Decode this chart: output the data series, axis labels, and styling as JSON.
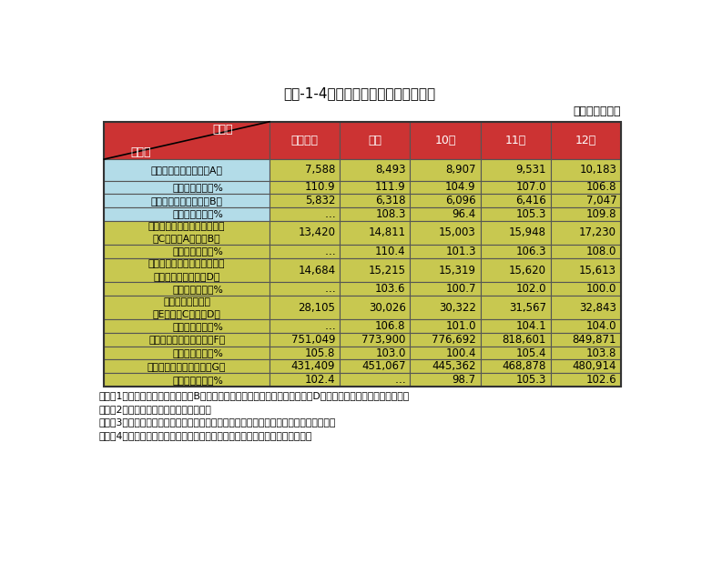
{
  "title": "第３-1-4表　科学技術関係経費の推移",
  "unit_label": "（単位：億円）",
  "col_headers": [
    "平成８年",
    "９年",
    "10年",
    "11年",
    "12年"
  ],
  "rows": [
    {
      "label": "科学技術振興費　　（A）",
      "values": [
        "7,588",
        "8,493",
        "8,907",
        "9,531",
        "10,183"
      ],
      "label_bg": "#b3dce8",
      "value_bg": "#c8c850"
    },
    {
      "label": "対前年度比　　%",
      "values": [
        "110.9",
        "111.9",
        "104.9",
        "107.0",
        "106.8"
      ],
      "label_bg": "#b3dce8",
      "value_bg": "#c8c850"
    },
    {
      "label": "その他の研究関係費（B）",
      "values": [
        "5,832",
        "6,318",
        "6,096",
        "6,416",
        "7,047"
      ],
      "label_bg": "#b3dce8",
      "value_bg": "#c8c850"
    },
    {
      "label": "対前年度比　　%",
      "values": [
        "…",
        "108.3",
        "96.4",
        "105.3",
        "109.8"
      ],
      "label_bg": "#b3dce8",
      "value_bg": "#c8c850"
    },
    {
      "label": "一般会計中の科学技術関係費\n（C）＝（A）＋（B）",
      "values": [
        "13,420",
        "14,811",
        "15,003",
        "15,948",
        "17,230"
      ],
      "label_bg": "#c8c850",
      "value_bg": "#c8c850"
    },
    {
      "label": "対前年度比　　%",
      "values": [
        "…",
        "110.4",
        "101.3",
        "106.3",
        "108.0"
      ],
      "label_bg": "#c8c850",
      "value_bg": "#c8c850"
    },
    {
      "label": "特別会計中の科学技術関係費\n　　　　　　　　（D）",
      "values": [
        "14,684",
        "15,215",
        "15,319",
        "15,620",
        "15,613"
      ],
      "label_bg": "#c8c850",
      "value_bg": "#c8c850"
    },
    {
      "label": "対前年度比　　%",
      "values": [
        "…",
        "103.6",
        "100.7",
        "102.0",
        "100.0"
      ],
      "label_bg": "#c8c850",
      "value_bg": "#c8c850"
    },
    {
      "label": "科学技術関係経費\n（E）＝（C）＋（D）",
      "values": [
        "28,105",
        "30,026",
        "30,322",
        "31,567",
        "32,843"
      ],
      "label_bg": "#c8c850",
      "value_bg": "#c8c850"
    },
    {
      "label": "対前年度比　　%",
      "values": [
        "…",
        "106.8",
        "101.0",
        "104.1",
        "104.0"
      ],
      "label_bg": "#c8c850",
      "value_bg": "#c8c850"
    },
    {
      "label": "国の一般会計予算　　（F）",
      "values": [
        "751,049",
        "773,900",
        "776,692",
        "818,601",
        "849,871"
      ],
      "label_bg": "#c8c850",
      "value_bg": "#c8c850"
    },
    {
      "label": "対前年度比　　%",
      "values": [
        "105.8",
        "103.0",
        "100.4",
        "105.4",
        "103.8"
      ],
      "label_bg": "#c8c850",
      "value_bg": "#c8c850"
    },
    {
      "label": "国の一般歳出予算　　（G）",
      "values": [
        "431,409",
        "451,067",
        "445,362",
        "468,878",
        "480,914"
      ],
      "label_bg": "#c8c850",
      "value_bg": "#c8c850"
    },
    {
      "label": "対前年度比　　%",
      "values": [
        "102.4",
        "…",
        "98.7",
        "105.3",
        "102.6"
      ],
      "label_bg": "#c8c850",
      "value_bg": "#c8c850"
    }
  ],
  "header_bg": "#cc3333",
  "header_text_color": "#ffffff",
  "note_text": "注）　1．「その他の研究関係費（B）」及び「特別会計中の科学技術関係費（D）」は、文部科学省調べである。\n　　　2．各年度とも当初予算額である。\n　　　3．「一般歳出」は、平成９年度から産業投資特別会計繰り入れ等を含めている。\n　　　4．各欄積算と合計欄の数字は四捨五入の関係で一致しないことがある。",
  "fig_bg": "#ffffff",
  "table_border_color": "#555555",
  "value_text_color": "#000000",
  "label_text_color": "#000000"
}
